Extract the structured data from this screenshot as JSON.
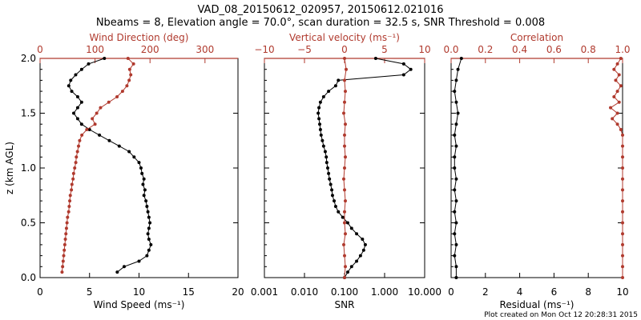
{
  "title_line1": "VAD_08_20150612_020957, 20150612.021016",
  "title_line2": "Nbeams = 8, Elevation angle = 70.0°, scan duration = 32.5 s, SNR Threshold = 0.008",
  "footer": "Plot created on Mon Oct 12 20:28:31 2015",
  "colors": {
    "primary": "#000000",
    "secondary": "#b03a2e"
  },
  "chart_data": [
    {
      "type": "line",
      "panel": "wind",
      "ylabel": "z (km AGL)",
      "ylim": [
        0,
        2
      ],
      "yticks": [
        "0.0",
        "0.5",
        "1.0",
        "1.5",
        "2.0"
      ],
      "bottom_axis": {
        "label": "Wind Speed (ms⁻¹)",
        "range": [
          0,
          20
        ],
        "ticks": [
          "0",
          "5",
          "10",
          "15",
          "20"
        ]
      },
      "top_axis": {
        "label": "Wind Direction (deg)",
        "range": [
          0,
          360
        ],
        "ticks": [
          "0",
          "100",
          "200",
          "300"
        ]
      },
      "series": [
        {
          "name": "Wind Speed",
          "axis": "bottom",
          "z": [
            0.05,
            0.1,
            0.15,
            0.2,
            0.25,
            0.3,
            0.35,
            0.4,
            0.45,
            0.5,
            0.55,
            0.6,
            0.65,
            0.7,
            0.75,
            0.8,
            0.85,
            0.9,
            0.95,
            1.0,
            1.05,
            1.1,
            1.15,
            1.2,
            1.25,
            1.3,
            1.35,
            1.4,
            1.45,
            1.5,
            1.55,
            1.6,
            1.65,
            1.7,
            1.75,
            1.8,
            1.85,
            1.9,
            1.95,
            2.0
          ],
          "values": [
            7.8,
            8.5,
            10.0,
            10.8,
            11.0,
            11.2,
            11.0,
            10.9,
            11.0,
            11.1,
            11.0,
            10.9,
            10.8,
            10.7,
            10.5,
            10.6,
            10.4,
            10.5,
            10.3,
            10.2,
            10.0,
            9.5,
            9.0,
            8.0,
            7.0,
            6.0,
            5.0,
            4.2,
            3.8,
            3.4,
            3.8,
            4.2,
            3.8,
            3.2,
            2.9,
            3.1,
            3.6,
            4.2,
            4.9,
            6.5
          ]
        },
        {
          "name": "Wind Direction",
          "axis": "top",
          "z": [
            0.05,
            0.1,
            0.15,
            0.2,
            0.25,
            0.3,
            0.35,
            0.4,
            0.45,
            0.5,
            0.55,
            0.6,
            0.65,
            0.7,
            0.75,
            0.8,
            0.85,
            0.9,
            0.95,
            1.0,
            1.05,
            1.1,
            1.15,
            1.2,
            1.25,
            1.3,
            1.35,
            1.4,
            1.45,
            1.5,
            1.55,
            1.6,
            1.65,
            1.7,
            1.75,
            1.8,
            1.85,
            1.9,
            1.95,
            2.0
          ],
          "values": [
            40,
            41,
            42,
            43,
            44,
            45,
            46,
            47,
            48,
            49,
            50,
            52,
            53,
            54,
            55,
            57,
            58,
            60,
            61,
            63,
            65,
            66,
            68,
            70,
            72,
            76,
            85,
            100,
            95,
            103,
            110,
            125,
            140,
            150,
            158,
            162,
            165,
            163,
            170,
            160
          ]
        }
      ]
    },
    {
      "type": "line",
      "panel": "vertical",
      "ylim": [
        0,
        2
      ],
      "bottom_axis": {
        "label": "SNR",
        "scale": "log",
        "range": [
          0.001,
          10
        ],
        "ticks": [
          "0.001",
          "0.010",
          "0.100",
          "1.000",
          "10.000"
        ]
      },
      "top_axis": {
        "label": "Vertical velocity (ms⁻¹)",
        "range": [
          -10,
          10
        ],
        "ticks": [
          "−10",
          "−5",
          "0",
          "5",
          "10"
        ]
      },
      "series": [
        {
          "name": "SNR",
          "axis": "bottom",
          "z": [
            0.0,
            0.05,
            0.1,
            0.15,
            0.2,
            0.25,
            0.3,
            0.35,
            0.4,
            0.45,
            0.5,
            0.55,
            0.6,
            0.65,
            0.7,
            0.75,
            0.8,
            0.85,
            0.9,
            0.95,
            1.0,
            1.05,
            1.1,
            1.15,
            1.2,
            1.25,
            1.3,
            1.35,
            1.4,
            1.45,
            1.5,
            1.55,
            1.6,
            1.65,
            1.7,
            1.75,
            1.8,
            1.85,
            1.9,
            1.95,
            2.0
          ],
          "values": [
            0.1,
            0.12,
            0.15,
            0.2,
            0.25,
            0.3,
            0.33,
            0.28,
            0.2,
            0.15,
            0.12,
            0.09,
            0.07,
            0.06,
            0.055,
            0.05,
            0.048,
            0.045,
            0.042,
            0.04,
            0.038,
            0.036,
            0.035,
            0.033,
            0.03,
            0.028,
            0.026,
            0.025,
            0.024,
            0.023,
            0.022,
            0.023,
            0.025,
            0.03,
            0.04,
            0.06,
            0.07,
            3.0,
            4.5,
            3.0,
            0.6
          ]
        },
        {
          "name": "Vertical velocity",
          "axis": "top",
          "z": [
            0.0,
            0.1,
            0.2,
            0.3,
            0.4,
            0.5,
            0.6,
            0.7,
            0.8,
            0.9,
            1.0,
            1.1,
            1.2,
            1.3,
            1.4,
            1.5,
            1.6,
            1.7,
            1.8,
            1.9,
            2.0
          ],
          "values": [
            0.0,
            0.1,
            0.0,
            -0.1,
            0.1,
            0.0,
            0.0,
            0.1,
            0.0,
            -0.1,
            0.0,
            0.1,
            0.0,
            0.0,
            0.1,
            -0.1,
            0.0,
            0.1,
            0.0,
            0.2,
            0.0
          ]
        }
      ]
    },
    {
      "type": "line",
      "panel": "residual",
      "ylim": [
        0,
        2
      ],
      "bottom_axis": {
        "label": "Residual (ms⁻¹)",
        "range": [
          0,
          10
        ],
        "ticks": [
          "0",
          "2",
          "4",
          "6",
          "8",
          "10"
        ]
      },
      "top_axis": {
        "label": "Correlation",
        "range": [
          0,
          1.0
        ],
        "ticks": [
          "0.0",
          "0.2",
          "0.4",
          "0.6",
          "0.8",
          "1.0"
        ]
      },
      "series": [
        {
          "name": "Residual",
          "axis": "bottom",
          "z": [
            0.0,
            0.1,
            0.2,
            0.3,
            0.4,
            0.5,
            0.6,
            0.7,
            0.8,
            0.9,
            1.0,
            1.1,
            1.2,
            1.3,
            1.4,
            1.5,
            1.6,
            1.7,
            1.8,
            1.9,
            2.0
          ],
          "values": [
            0.3,
            0.3,
            0.2,
            0.3,
            0.2,
            0.3,
            0.2,
            0.3,
            0.2,
            0.3,
            0.2,
            0.2,
            0.3,
            0.2,
            0.3,
            0.4,
            0.3,
            0.2,
            0.3,
            0.4,
            0.6
          ]
        },
        {
          "name": "Correlation",
          "axis": "top",
          "z": [
            0.0,
            0.1,
            0.2,
            0.3,
            0.4,
            0.5,
            0.6,
            0.7,
            0.8,
            0.9,
            1.0,
            1.1,
            1.2,
            1.3,
            1.35,
            1.4,
            1.45,
            1.5,
            1.55,
            1.6,
            1.65,
            1.7,
            1.75,
            1.8,
            1.85,
            1.9,
            1.95,
            2.0
          ],
          "values": [
            1.0,
            1.0,
            1.0,
            1.0,
            1.0,
            1.0,
            1.0,
            1.0,
            1.0,
            1.0,
            1.0,
            1.0,
            1.0,
            1.0,
            0.99,
            0.97,
            0.94,
            0.97,
            0.93,
            0.98,
            0.95,
            0.97,
            0.99,
            0.96,
            0.98,
            0.95,
            0.97,
            0.99
          ]
        }
      ]
    }
  ]
}
